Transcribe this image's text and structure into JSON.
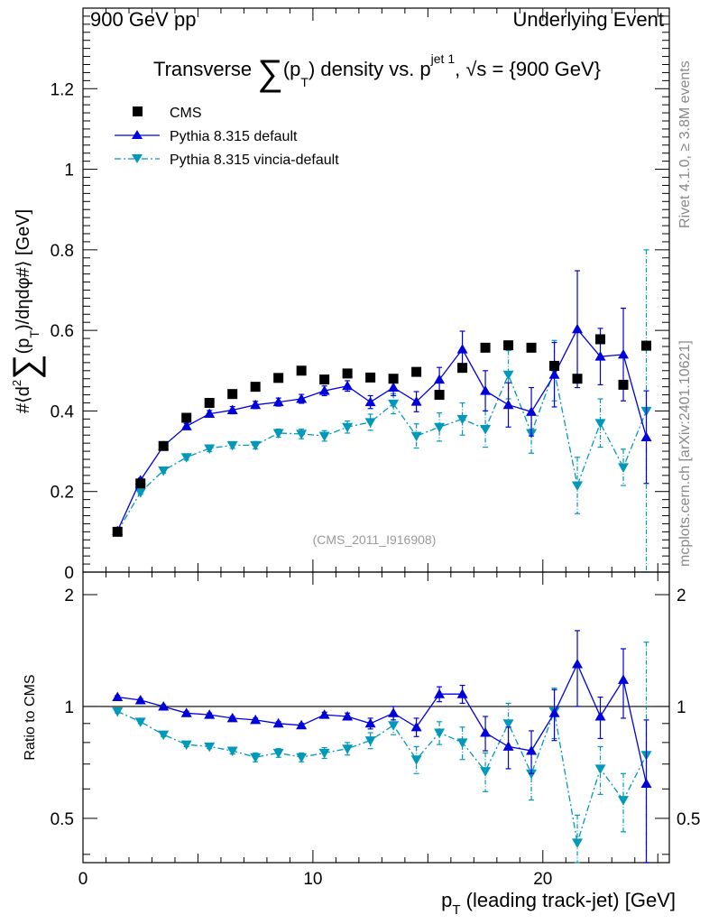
{
  "header": {
    "left": "900 GeV pp",
    "right": "Underlying Event"
  },
  "side_labels": {
    "rivet": "Rivet 4.1.0, ≥ 3.8M events",
    "mcplots": "mcplots.cern.ch [arXiv:2401.10621]"
  },
  "colors": {
    "cms": "#000000",
    "default": "#0000dd",
    "vincia": "#0099bb"
  },
  "chart_data": [
    {
      "type": "scatter",
      "title": "Transverse ∑(pT) density vs. pT^jet 1, √s = {900 GeV}",
      "title_parts": {
        "a": "Transverse",
        "sum": "∑",
        "b": "(p",
        "sub_T": "T",
        "c": ") density vs. p",
        "sup": "jet 1",
        "d": ", √s = {900 GeV}"
      },
      "ylabel": "#⟨d² ∑(pT)/dηdφ#⟩ [GeV]",
      "ylabel_parts": {
        "a": "#⟨d",
        "sup2": "2",
        "sum": "∑",
        "b": "(p",
        "sub_T": "T",
        "c": ")/dηdφ#⟩ [GeV]"
      },
      "analysis_tag": "(CMS_2011_I916908)",
      "xlim": [
        0,
        25.5
      ],
      "ylim": [
        0,
        1.4
      ],
      "yticks": [
        0,
        0.2,
        0.4,
        0.6,
        0.8,
        1,
        1.2
      ],
      "ytick_labels": [
        "0",
        "0.2",
        "0.4",
        "0.6",
        "0.8",
        "1",
        "1.2"
      ],
      "x": [
        1.5,
        2.5,
        3.5,
        4.5,
        5.5,
        6.5,
        7.5,
        8.5,
        9.5,
        10.5,
        11.5,
        12.5,
        13.5,
        14.5,
        15.5,
        16.5,
        17.5,
        18.5,
        19.5,
        20.5,
        21.5,
        22.5,
        23.5,
        24.5
      ],
      "legend": [
        "CMS",
        "Pythia 8.315 default",
        "Pythia 8.315 vincia-default"
      ],
      "series": [
        {
          "name": "CMS",
          "marker": "square",
          "line": "none",
          "values": [
            0.1,
            0.22,
            0.313,
            0.383,
            0.42,
            0.442,
            0.46,
            0.482,
            0.5,
            0.478,
            0.493,
            0.483,
            0.48,
            0.497,
            0.44,
            0.507,
            0.557,
            0.563,
            0.557,
            0.512,
            0.48,
            0.578,
            0.465,
            0.562
          ],
          "errors": [
            0,
            0,
            0,
            0,
            0,
            0,
            0,
            0,
            0,
            0,
            0,
            0,
            0,
            0,
            0,
            0,
            0,
            0,
            0,
            0,
            0,
            0,
            0,
            0
          ]
        },
        {
          "name": "Pythia 8.315 default",
          "marker": "triangle-up",
          "line": "solid",
          "values": [
            0.102,
            0.228,
            0.313,
            0.362,
            0.393,
            0.402,
            0.415,
            0.422,
            0.43,
            0.45,
            0.462,
            0.422,
            0.458,
            0.423,
            0.478,
            0.553,
            0.45,
            0.415,
            0.398,
            0.49,
            0.603,
            0.535,
            0.54,
            0.335
          ],
          "errors": [
            0.003,
            0.005,
            0.006,
            0.007,
            0.008,
            0.009,
            0.009,
            0.01,
            0.011,
            0.012,
            0.013,
            0.016,
            0.02,
            0.025,
            0.03,
            0.045,
            0.05,
            0.055,
            0.06,
            0.08,
            0.145,
            0.07,
            0.115,
            0.115
          ]
        },
        {
          "name": "Pythia 8.315 vincia-default",
          "marker": "triangle-down",
          "line": "dashdot",
          "values": [
            0.1,
            0.198,
            0.252,
            0.285,
            0.307,
            0.315,
            0.315,
            0.345,
            0.343,
            0.338,
            0.36,
            0.372,
            0.418,
            0.338,
            0.36,
            0.38,
            0.355,
            0.49,
            0.345,
            0.5,
            0.215,
            0.37,
            0.26,
            0.4
          ],
          "errors": [
            0.003,
            0.005,
            0.006,
            0.007,
            0.008,
            0.008,
            0.009,
            0.01,
            0.012,
            0.013,
            0.015,
            0.02,
            0.025,
            0.03,
            0.035,
            0.04,
            0.045,
            0.06,
            0.05,
            0.075,
            0.07,
            0.06,
            0.045,
            0.4
          ]
        }
      ]
    },
    {
      "type": "scatter",
      "title": "Ratio to CMS",
      "xlabel": "pT (leading track-jet) [GeV]",
      "xlabel_parts": {
        "a": "p",
        "sub_T": "T",
        "b": " (leading track-jet) [GeV]"
      },
      "ylabel": "Ratio to CMS",
      "xlim": [
        0,
        25.5
      ],
      "ylim": [
        0.38,
        2.3
      ],
      "yscale": "log",
      "xticks": [
        0,
        10,
        20
      ],
      "xtick_labels": [
        "0",
        "10",
        "20"
      ],
      "ytick_labels": {
        "v05": "0.5",
        "v1": "1",
        "v2": "2"
      },
      "reference": 1,
      "x": [
        1.5,
        2.5,
        3.5,
        4.5,
        5.5,
        6.5,
        7.5,
        8.5,
        9.5,
        10.5,
        11.5,
        12.5,
        13.5,
        14.5,
        15.5,
        16.5,
        17.5,
        18.5,
        19.5,
        20.5,
        21.5,
        22.5,
        23.5,
        24.5
      ],
      "series": [
        {
          "name": "Pythia 8.315 default",
          "marker": "triangle-up",
          "line": "solid",
          "values": [
            1.06,
            1.04,
            1.0,
            0.96,
            0.95,
            0.93,
            0.92,
            0.9,
            0.89,
            0.95,
            0.94,
            0.9,
            0.96,
            0.88,
            1.08,
            1.08,
            0.85,
            0.78,
            0.76,
            0.96,
            1.3,
            0.94,
            1.18,
            0.62
          ],
          "errors": [
            0.01,
            0.01,
            0.01,
            0.01,
            0.01,
            0.01,
            0.01,
            0.01,
            0.01,
            0.015,
            0.02,
            0.03,
            0.04,
            0.05,
            0.05,
            0.06,
            0.09,
            0.1,
            0.1,
            0.15,
            0.3,
            0.12,
            0.25,
            0.3
          ]
        },
        {
          "name": "Pythia 8.315 vincia-default",
          "marker": "triangle-down",
          "line": "dashdot",
          "values": [
            0.97,
            0.91,
            0.84,
            0.79,
            0.78,
            0.76,
            0.73,
            0.75,
            0.73,
            0.75,
            0.77,
            0.81,
            0.89,
            0.72,
            0.85,
            0.8,
            0.67,
            0.9,
            0.66,
            0.97,
            0.43,
            0.68,
            0.56,
            0.74
          ],
          "errors": [
            0.01,
            0.01,
            0.01,
            0.01,
            0.01,
            0.015,
            0.02,
            0.02,
            0.02,
            0.025,
            0.03,
            0.04,
            0.05,
            0.06,
            0.06,
            0.08,
            0.08,
            0.12,
            0.1,
            0.15,
            0.08,
            0.1,
            0.1,
            0.75
          ]
        }
      ]
    }
  ]
}
